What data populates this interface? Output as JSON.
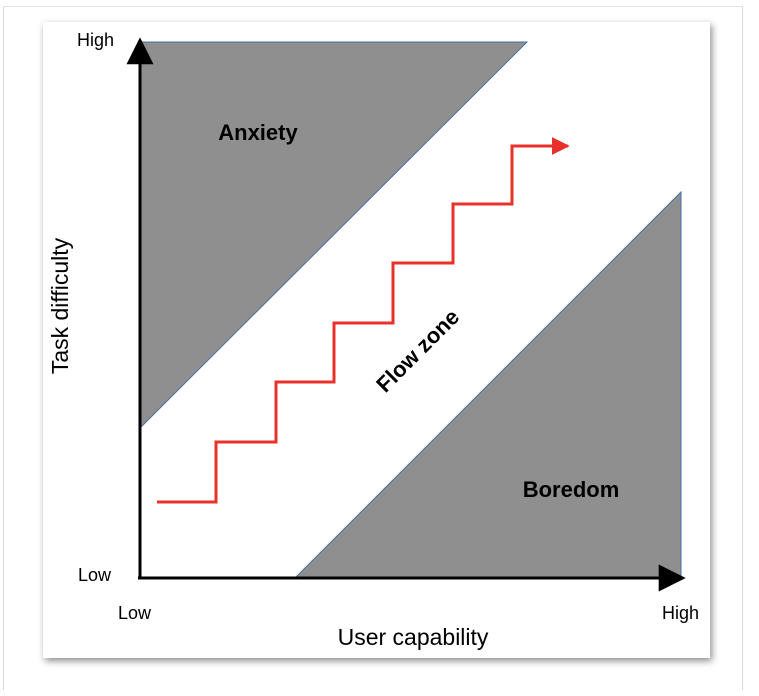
{
  "diagram": {
    "y_axis": {
      "title": "Task difficulty",
      "high_label": "High",
      "low_label": "Low"
    },
    "x_axis": {
      "title": "User capability",
      "low_label": "Low",
      "high_label": "High"
    },
    "regions": {
      "anxiety": "Anxiety",
      "flow": "Flow zone",
      "boredom": "Boredom"
    },
    "colors": {
      "region_fill": "#8f8f8f",
      "region_edge": "#4a6fa5",
      "staircase": "#e8312a",
      "axis": "#000000"
    }
  }
}
